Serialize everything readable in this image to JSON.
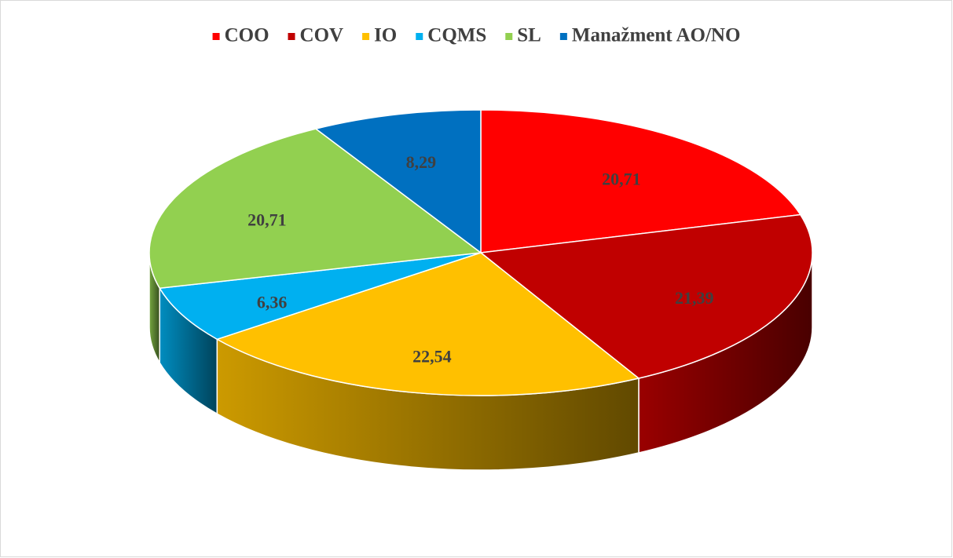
{
  "chart_data": {
    "type": "pie",
    "categories": [
      "COO",
      "COV",
      "IO",
      "CQMS",
      "SL",
      "Manažment AO/NO"
    ],
    "values": [
      20.71,
      21.39,
      22.54,
      6.36,
      20.71,
      8.29
    ],
    "value_labels": [
      "20,71",
      "21,39",
      "22,54",
      "6,36",
      "20,71",
      "8,29"
    ],
    "colors": [
      "#ff0000",
      "#c00000",
      "#ffc000",
      "#00b0f0",
      "#92d050",
      "#0070c0"
    ],
    "legend": "top"
  }
}
